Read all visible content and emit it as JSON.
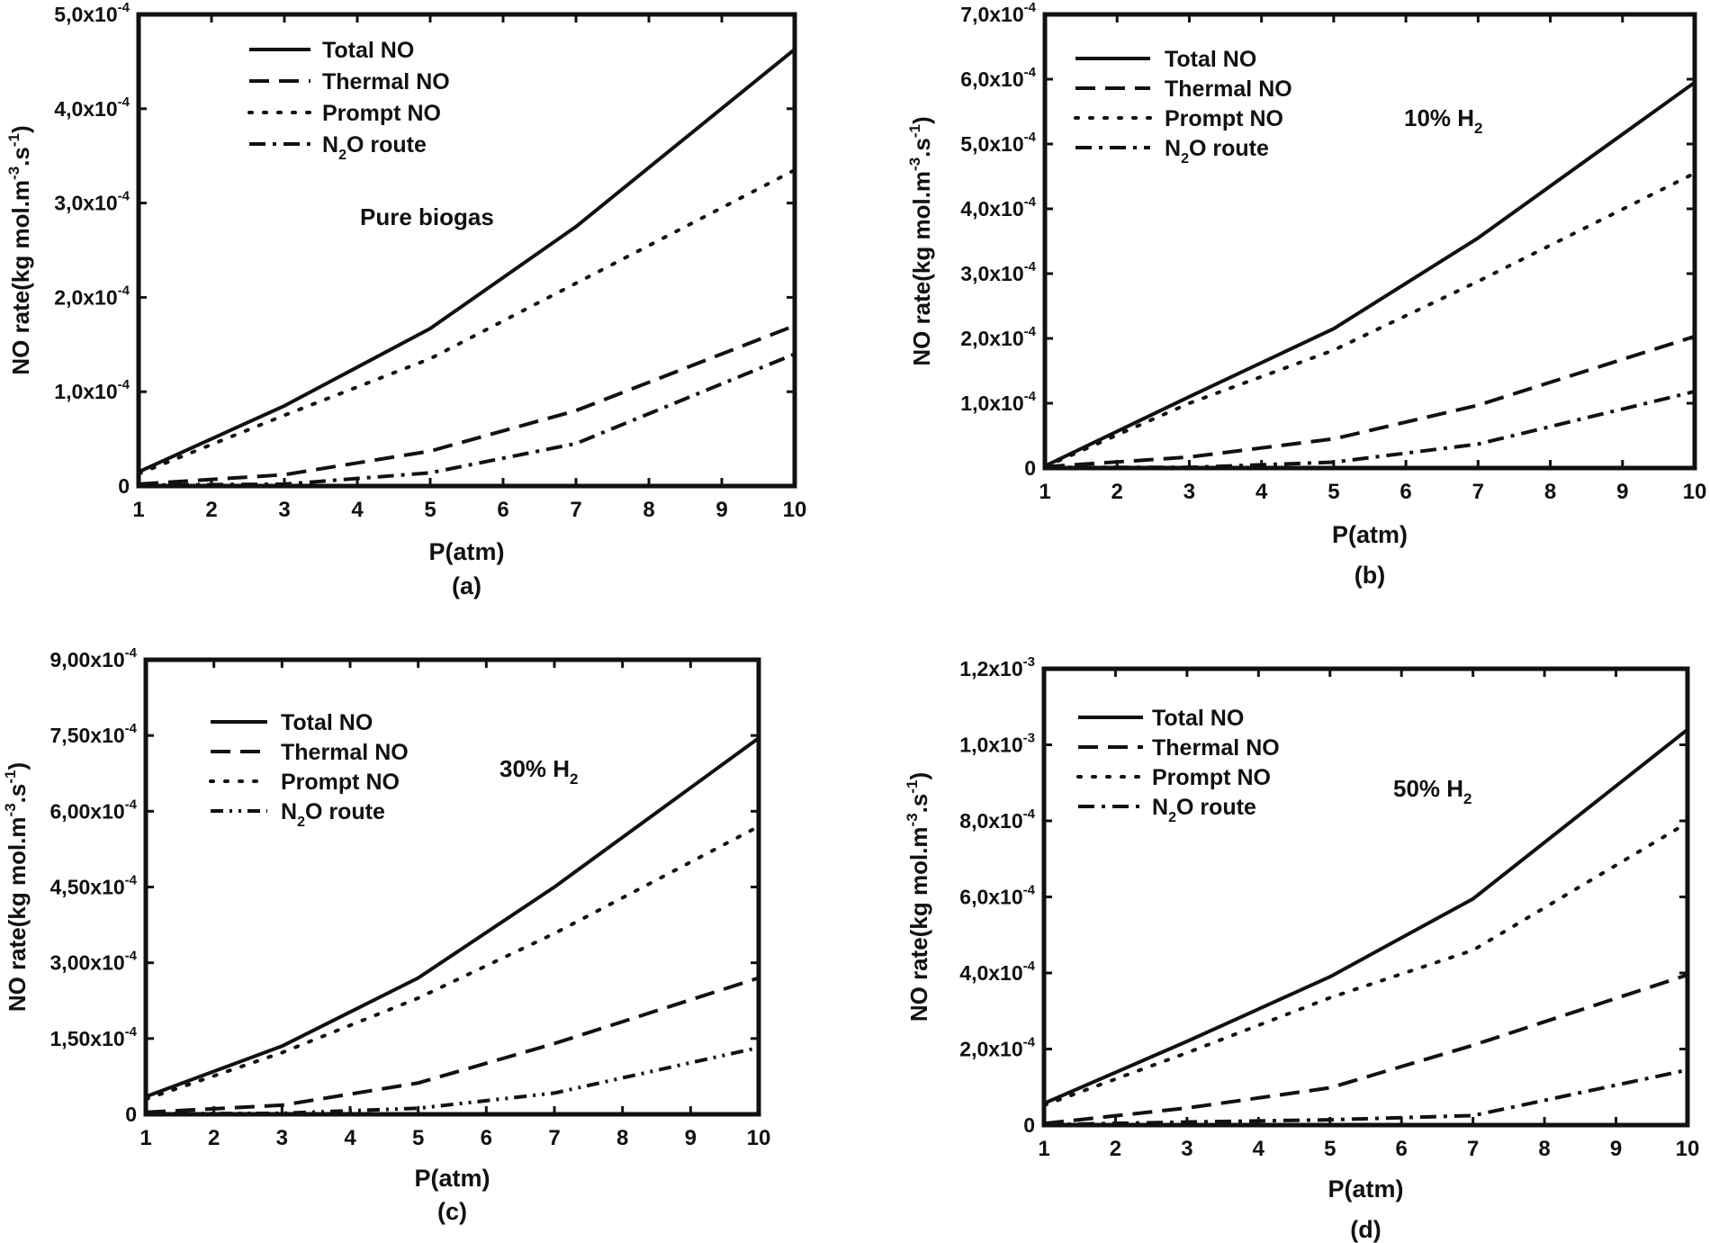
{
  "figure": {
    "background": "#ffffff",
    "line_color": "#111111"
  },
  "chart_data": [
    {
      "id": "a",
      "type": "line",
      "annotation": "Pure biogas",
      "panel_label": "(a)",
      "xlabel": "P(atm)",
      "ylabel": "NO rate(kg mol.m-3.s-1)",
      "ylabel_parts": {
        "base": "NO rate(kg mol.m",
        "sup1": "-3",
        "mid": ".s",
        "sup2": "-1",
        "end": ")"
      },
      "xlim": [
        1,
        10
      ],
      "ylim": [
        0,
        0.0005
      ],
      "xticks": [
        1,
        2,
        3,
        4,
        5,
        6,
        7,
        8,
        9,
        10
      ],
      "yticks": [
        {
          "value": 0,
          "mantissa": "0",
          "exponent": ""
        },
        {
          "value": 0.0001,
          "mantissa": "1,0x10",
          "exponent": "-4"
        },
        {
          "value": 0.0002,
          "mantissa": "2,0x10",
          "exponent": "-4"
        },
        {
          "value": 0.0003,
          "mantissa": "3,0x10",
          "exponent": "-4"
        },
        {
          "value": 0.0004,
          "mantissa": "4,0x10",
          "exponent": "-4"
        },
        {
          "value": 0.0005,
          "mantissa": "5,0x10",
          "exponent": "-4"
        }
      ],
      "series": [
        {
          "name": "Total NO",
          "label": "Total NO",
          "style": "solid",
          "x": [
            1,
            3,
            5,
            7,
            10
          ],
          "y": [
            1.5e-05,
            8.5e-05,
            0.000167,
            0.000275,
            0.000463
          ]
        },
        {
          "name": "Thermal NO",
          "label": "Thermal NO",
          "style": "dash",
          "x": [
            1,
            3,
            5,
            7,
            10
          ],
          "y": [
            2e-06,
            1.2e-05,
            3.7e-05,
            8e-05,
            0.00017
          ]
        },
        {
          "name": "Prompt NO",
          "label": "Prompt NO",
          "style": "dot",
          "x": [
            1,
            3,
            5,
            7,
            10
          ],
          "y": [
            1.3e-05,
            7.5e-05,
            0.000135,
            0.000215,
            0.000335
          ]
        },
        {
          "name": "N2O route",
          "label_parts": {
            "pre": "N",
            "sub": "2",
            "post": "O route"
          },
          "style": "dashdot",
          "x": [
            1,
            3,
            5,
            7,
            10
          ],
          "y": [
            1e-06,
            2e-06,
            1.4e-05,
            4.5e-05,
            0.00014
          ]
        }
      ]
    },
    {
      "id": "b",
      "type": "line",
      "annotation_parts": {
        "pre": "10% H",
        "sub": "2"
      },
      "panel_label": "(b)",
      "xlabel": "P(atm)",
      "ylabel": "NO rate(kg mol.m-3.s-1)",
      "ylabel_parts": {
        "base": "NO rate(kg mol.m",
        "sup1": "-3",
        "mid": ".s",
        "sup2": "-1",
        "end": ")"
      },
      "xlim": [
        1,
        10
      ],
      "ylim": [
        0,
        0.0007
      ],
      "xticks": [
        1,
        2,
        3,
        4,
        5,
        6,
        7,
        8,
        9,
        10
      ],
      "yticks": [
        {
          "value": 0,
          "mantissa": "0",
          "exponent": ""
        },
        {
          "value": 0.0001,
          "mantissa": "1,0x10",
          "exponent": "-4"
        },
        {
          "value": 0.0002,
          "mantissa": "2,0x10",
          "exponent": "-4"
        },
        {
          "value": 0.0003,
          "mantissa": "3,0x10",
          "exponent": "-4"
        },
        {
          "value": 0.0004,
          "mantissa": "4,0x10",
          "exponent": "-4"
        },
        {
          "value": 0.0005,
          "mantissa": "5,0x10",
          "exponent": "-4"
        },
        {
          "value": 0.0006,
          "mantissa": "6,0x10",
          "exponent": "-4"
        },
        {
          "value": 0.0007,
          "mantissa": "7,0x10",
          "exponent": "-4"
        }
      ],
      "series": [
        {
          "name": "Total NO",
          "label": "Total NO",
          "style": "solid",
          "x": [
            1,
            3,
            5,
            7,
            10
          ],
          "y": [
            3e-06,
            0.00011,
            0.000215,
            0.000355,
            0.000595
          ]
        },
        {
          "name": "Thermal NO",
          "label": "Thermal NO",
          "style": "dash",
          "x": [
            1,
            3,
            5,
            7,
            10
          ],
          "y": [
            2e-06,
            1.7e-05,
            4.5e-05,
            9.7e-05,
            0.000203
          ]
        },
        {
          "name": "Prompt NO",
          "label": "Prompt NO",
          "style": "dot",
          "x": [
            1,
            3,
            5,
            7,
            10
          ],
          "y": [
            2e-06,
            0.0001,
            0.000182,
            0.000288,
            0.000455
          ]
        },
        {
          "name": "N2O route",
          "label_parts": {
            "pre": "N",
            "sub": "2",
            "post": "O route"
          },
          "style": "dashdot",
          "x": [
            1,
            3,
            5,
            7,
            10
          ],
          "y": [
            1e-06,
            1e-06,
            9e-06,
            3.7e-05,
            0.000118
          ]
        }
      ]
    },
    {
      "id": "c",
      "type": "line",
      "annotation_parts": {
        "pre": "30% H",
        "sub": "2"
      },
      "panel_label": "(c)",
      "xlabel": "P(atm)",
      "ylabel": "NO rate(kg mol.m-3.s-1)",
      "ylabel_parts": {
        "base": "NO rate(kg mol.m",
        "sup1": "-3",
        "mid": ".s",
        "sup2": "-1",
        "end": ")"
      },
      "xlim": [
        1,
        10
      ],
      "ylim": [
        0,
        0.0009
      ],
      "xticks": [
        1,
        2,
        3,
        4,
        5,
        6,
        7,
        8,
        9,
        10
      ],
      "yticks": [
        {
          "value": 0,
          "mantissa": "0",
          "exponent": ""
        },
        {
          "value": 0.00015,
          "mantissa": "1,50x10",
          "exponent": "-4"
        },
        {
          "value": 0.0003,
          "mantissa": "3,00x10",
          "exponent": "-4"
        },
        {
          "value": 0.00045,
          "mantissa": "4,50x10",
          "exponent": "-4"
        },
        {
          "value": 0.0006,
          "mantissa": "6,00x10",
          "exponent": "-4"
        },
        {
          "value": 0.00075,
          "mantissa": "7,50x10",
          "exponent": "-4"
        },
        {
          "value": 0.0009,
          "mantissa": "9,00x10",
          "exponent": "-4"
        }
      ],
      "series": [
        {
          "name": "Total NO",
          "label": "Total NO",
          "style": "solid",
          "x": [
            1,
            3,
            5,
            7,
            10
          ],
          "y": [
            3.5e-05,
            0.000135,
            0.00027,
            0.00045,
            0.000745
          ]
        },
        {
          "name": "Thermal NO",
          "label": "Thermal NO",
          "style": "dash",
          "x": [
            1,
            3,
            5,
            7,
            10
          ],
          "y": [
            4e-06,
            1.8e-05,
            6.2e-05,
            0.00014,
            0.00027
          ]
        },
        {
          "name": "Prompt NO",
          "label": "Prompt NO",
          "style": "dot",
          "x": [
            1,
            3,
            5,
            7,
            10
          ],
          "y": [
            3e-05,
            0.000122,
            0.00023,
            0.000358,
            0.00057
          ]
        },
        {
          "name": "N2O route",
          "label_parts": {
            "pre": "N",
            "sub": "2",
            "post": "O route"
          },
          "style": "dashdotdot",
          "x": [
            1,
            3,
            5,
            7,
            10
          ],
          "y": [
            1e-06,
            2e-06,
            1.2e-05,
            4.2e-05,
            0.000132
          ]
        }
      ]
    },
    {
      "id": "d",
      "type": "line",
      "annotation_parts": {
        "pre": "50% H",
        "sub": "2"
      },
      "panel_label": "(d)",
      "xlabel": "P(atm)",
      "ylabel": "NO rate(kg mol.m-3.s-1)",
      "ylabel_parts": {
        "base": "NO rate(kg mol.m",
        "sup1": "-3",
        "mid": ".s",
        "sup2": "-1",
        "end": ")"
      },
      "xlim": [
        1,
        10
      ],
      "ylim": [
        0,
        0.0012
      ],
      "xticks": [
        1,
        2,
        3,
        4,
        5,
        6,
        7,
        8,
        9,
        10
      ],
      "yticks": [
        {
          "value": 0,
          "mantissa": "0",
          "exponent": ""
        },
        {
          "value": 0.0002,
          "mantissa": "2,0x10",
          "exponent": "-4"
        },
        {
          "value": 0.0004,
          "mantissa": "4,0x10",
          "exponent": "-4"
        },
        {
          "value": 0.0006,
          "mantissa": "6,0x10",
          "exponent": "-4"
        },
        {
          "value": 0.0008,
          "mantissa": "8,0x10",
          "exponent": "-4"
        },
        {
          "value": 0.001,
          "mantissa": "1,0x10",
          "exponent": "-3"
        },
        {
          "value": 0.0012,
          "mantissa": "1,2x10",
          "exponent": "-3"
        }
      ],
      "series": [
        {
          "name": "Total NO",
          "label": "Total NO",
          "style": "solid",
          "x": [
            1,
            3,
            5,
            7,
            10
          ],
          "y": [
            5.7e-05,
            0.00022,
            0.00039,
            0.000595,
            0.00104
          ]
        },
        {
          "name": "Thermal NO",
          "label": "Thermal NO",
          "style": "dash",
          "x": [
            1,
            3,
            5,
            7,
            10
          ],
          "y": [
            4e-06,
            4.5e-05,
            9.8e-05,
            0.00021,
            0.000395
          ]
        },
        {
          "name": "Prompt NO",
          "label": "Prompt NO",
          "style": "dot",
          "x": [
            1,
            3,
            5,
            7,
            10
          ],
          "y": [
            5.2e-05,
            0.00019,
            0.000335,
            0.00046,
            0.000795
          ]
        },
        {
          "name": "N2O route",
          "label_parts": {
            "pre": "N",
            "sub": "2",
            "post": "O route"
          },
          "style": "dashdot",
          "x": [
            1,
            3,
            5,
            7,
            10
          ],
          "y": [
            1e-06,
            8e-06,
            1.4e-05,
            2.5e-05,
            0.000145
          ]
        }
      ]
    }
  ]
}
